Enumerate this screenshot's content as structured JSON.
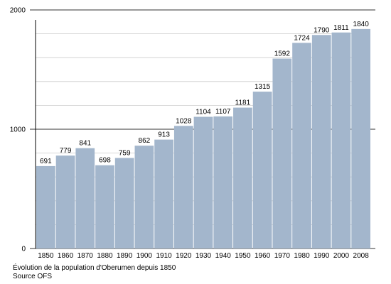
{
  "chart_data": {
    "type": "bar",
    "categories": [
      "1850",
      "1860",
      "1870",
      "1880",
      "1890",
      "1900",
      "1910",
      "1920",
      "1930",
      "1940",
      "1950",
      "1960",
      "1970",
      "1980",
      "1990",
      "2000",
      "2008"
    ],
    "values": [
      691,
      779,
      841,
      698,
      759,
      862,
      913,
      1028,
      1104,
      1107,
      1181,
      1315,
      1592,
      1724,
      1790,
      1811,
      1840
    ],
    "y_ticks": [
      "0",
      "1000",
      "2000"
    ],
    "ylim": [
      0,
      2000
    ],
    "grid": true,
    "bar_color": "#a3b6cc",
    "grid_color": "#cccccc"
  },
  "caption": {
    "line1": "Évolution de la population d'Oberumen depuis 1850",
    "line2": "Source OFS"
  }
}
